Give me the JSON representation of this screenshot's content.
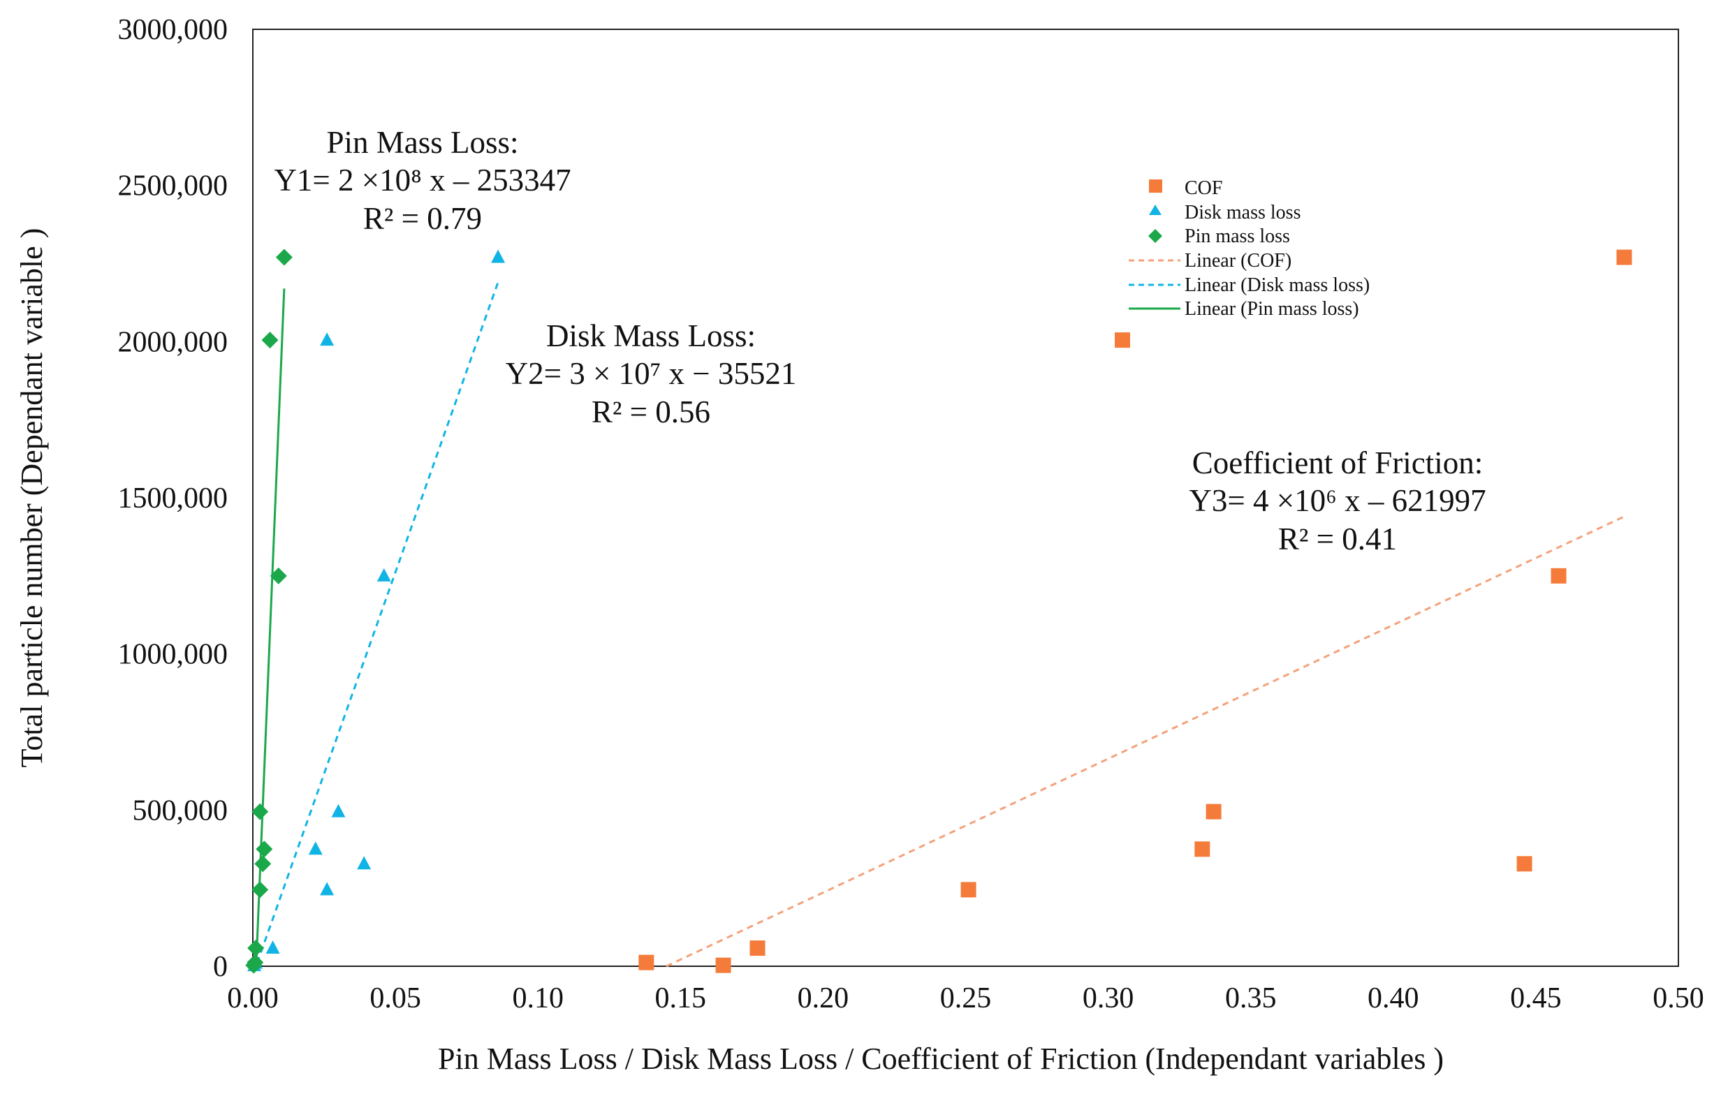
{
  "chart_data": {
    "type": "scatter",
    "title": "",
    "xlabel": "Pin Mass Loss / Disk Mass Loss / Coefficient of Friction (Independant variables )",
    "ylabel": "Total particle number (Dependant variable )",
    "xlim": [
      0,
      0.5
    ],
    "ylim": [
      0,
      3000000
    ],
    "x_ticks": [
      0,
      0.05,
      0.1,
      0.15,
      0.2,
      0.25,
      0.3,
      0.35,
      0.4,
      0.45,
      0.5
    ],
    "x_tick_labels": [
      "0.00",
      "0.05",
      "0.10",
      "0.15",
      "0.20",
      "0.25",
      "0.30",
      "0.35",
      "0.40",
      "0.45",
      "0.50"
    ],
    "y_ticks": [
      0,
      500000,
      1000000,
      1500000,
      2000000,
      2500000,
      3000000
    ],
    "y_tick_labels": [
      "0",
      "500,000",
      "1000,000",
      "1500,000",
      "2000,000",
      "2500,000",
      "3000,000"
    ],
    "grid": false,
    "legend_position": "top-right",
    "series": [
      {
        "name": "COF",
        "marker": "square",
        "color": "#f47b3a",
        "points": [
          [
            0.138,
            12000
          ],
          [
            0.165,
            3000
          ],
          [
            0.177,
            58000
          ],
          [
            0.251,
            245000
          ],
          [
            0.305,
            2005000
          ],
          [
            0.333,
            375000
          ],
          [
            0.337,
            495000
          ],
          [
            0.446,
            328000
          ],
          [
            0.458,
            1250000
          ],
          [
            0.481,
            2270000
          ]
        ]
      },
      {
        "name": "Disk mass loss",
        "marker": "triangle",
        "color": "#10b4e4",
        "points": [
          [
            0.0005,
            2000
          ],
          [
            0.001,
            10000
          ],
          [
            0.007,
            58000
          ],
          [
            0.022,
            375000
          ],
          [
            0.026,
            245000
          ],
          [
            0.026,
            2005000
          ],
          [
            0.03,
            495000
          ],
          [
            0.039,
            328000
          ],
          [
            0.046,
            1250000
          ],
          [
            0.086,
            2270000
          ]
        ]
      },
      {
        "name": "Pin mass loss",
        "marker": "diamond",
        "color": "#1aa84a",
        "points": [
          [
            0.0003,
            3000
          ],
          [
            0.0008,
            12000
          ],
          [
            0.001,
            58000
          ],
          [
            0.0025,
            245000
          ],
          [
            0.0025,
            495000
          ],
          [
            0.0035,
            328000
          ],
          [
            0.004,
            375000
          ],
          [
            0.006,
            2005000
          ],
          [
            0.009,
            1250000
          ],
          [
            0.011,
            2270000
          ]
        ]
      }
    ],
    "trendlines": [
      {
        "name": "Linear (COF)",
        "style": "dashed",
        "color": "#f4a27a",
        "x_range": [
          0.145,
          0.481
        ],
        "y_range": [
          0,
          1440000
        ]
      },
      {
        "name": "Linear (Disk mass loss)",
        "style": "dashed",
        "color": "#10b4e4",
        "x_range": [
          0.0015,
          0.086
        ],
        "y_range": [
          10000,
          2190000
        ]
      },
      {
        "name": "Linear (Pin mass loss)",
        "style": "solid",
        "color": "#1aa84a",
        "x_range": [
          0.0012,
          0.011
        ],
        "y_range": [
          10000,
          2170000
        ]
      }
    ],
    "legend": [
      "COF",
      "Disk mass loss",
      "Pin mass loss",
      "Linear (COF)",
      "Linear (Disk mass loss)",
      "Linear (Pin mass loss)"
    ],
    "annotations": [
      {
        "id": "pin",
        "lines": [
          "Pin Mass Loss:",
          "Y1= 2 ×10⁸ x – 253347",
          "R² = 0.79"
        ]
      },
      {
        "id": "disk",
        "lines": [
          "Disk Mass Loss:",
          "Y2= 3 × 10⁷ x − 35521",
          "R² = 0.56"
        ]
      },
      {
        "id": "cof",
        "lines": [
          "Coefficient of Friction:",
          "Y3= 4 ×10⁶ x – 621997",
          "R² = 0.41"
        ]
      }
    ]
  }
}
